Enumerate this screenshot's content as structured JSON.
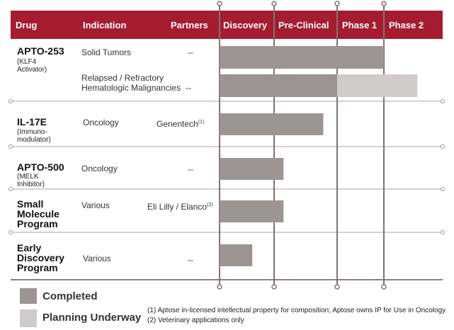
{
  "header": {
    "columns": [
      "Drug",
      "Indication",
      "Partners",
      "Discovery",
      "Pre-Clinical",
      "Phase 1",
      "Phase 2"
    ]
  },
  "rows": [
    {
      "drug": "APTO-253",
      "subtitle": "(KLF4 Activator)",
      "programs": [
        {
          "indication": "Solid Tumors",
          "partners": "--",
          "bars": [
            {
              "status": "completed",
              "from": 0,
              "to": 3
            }
          ]
        },
        {
          "indication": "Relapsed / Refractory Hematologic Malignancies",
          "partners": "--",
          "bars": [
            {
              "status": "completed",
              "from": 0,
              "to": 2
            },
            {
              "status": "planning",
              "from": 2,
              "to": 3.57
            }
          ]
        }
      ]
    },
    {
      "drug": "IL-17E",
      "subtitle": "(Immuno-modulator)",
      "programs": [
        {
          "indication": "Oncology",
          "partners": "Genentech",
          "partners_note": "(1)",
          "bars": [
            {
              "status": "completed",
              "from": 0,
              "to": 1.78
            }
          ]
        }
      ]
    },
    {
      "drug": "APTO-500",
      "subtitle": "(MELK Inhibitor)",
      "programs": [
        {
          "indication": "Oncology",
          "partners": "--",
          "bars": [
            {
              "status": "completed",
              "from": 0,
              "to": 1.15
            }
          ]
        }
      ]
    },
    {
      "drug": "Small Molecule Program",
      "programs": [
        {
          "indication": "Various",
          "partners": "Eli Lilly / Elanco",
          "partners_note": "(2)",
          "bars": [
            {
              "status": "completed",
              "from": 0,
              "to": 1.15
            }
          ]
        }
      ]
    },
    {
      "drug": "Early Discovery Program",
      "programs": [
        {
          "indication": "Various",
          "partners": "--",
          "bars": [
            {
              "status": "completed",
              "from": 0,
              "to": 0.6
            }
          ]
        }
      ]
    }
  ],
  "legend": [
    {
      "status": "completed",
      "label": "Completed",
      "color": "#9b9593"
    },
    {
      "status": "planning",
      "label": "Planning Underway",
      "color": "#cfcbca"
    }
  ],
  "footnotes": [
    "(1) Aptose in-licensed intellectual property for composition; Aptose owns IP for Use in Oncology",
    "(2) Veterinary applications only"
  ]
}
